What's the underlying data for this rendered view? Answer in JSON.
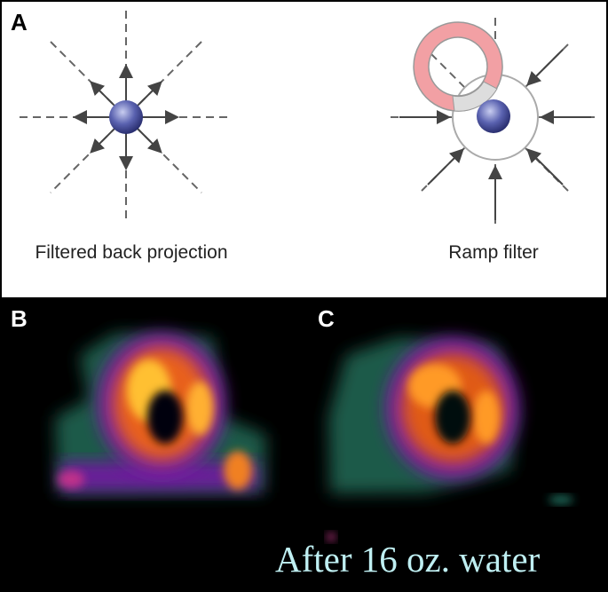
{
  "panels": {
    "a": {
      "label": "A",
      "left_caption": "Filtered back projection",
      "right_caption": "Ramp filter"
    },
    "b": {
      "label": "B"
    },
    "c": {
      "label": "C"
    },
    "overlay_text": "After 16 oz. water"
  }
}
